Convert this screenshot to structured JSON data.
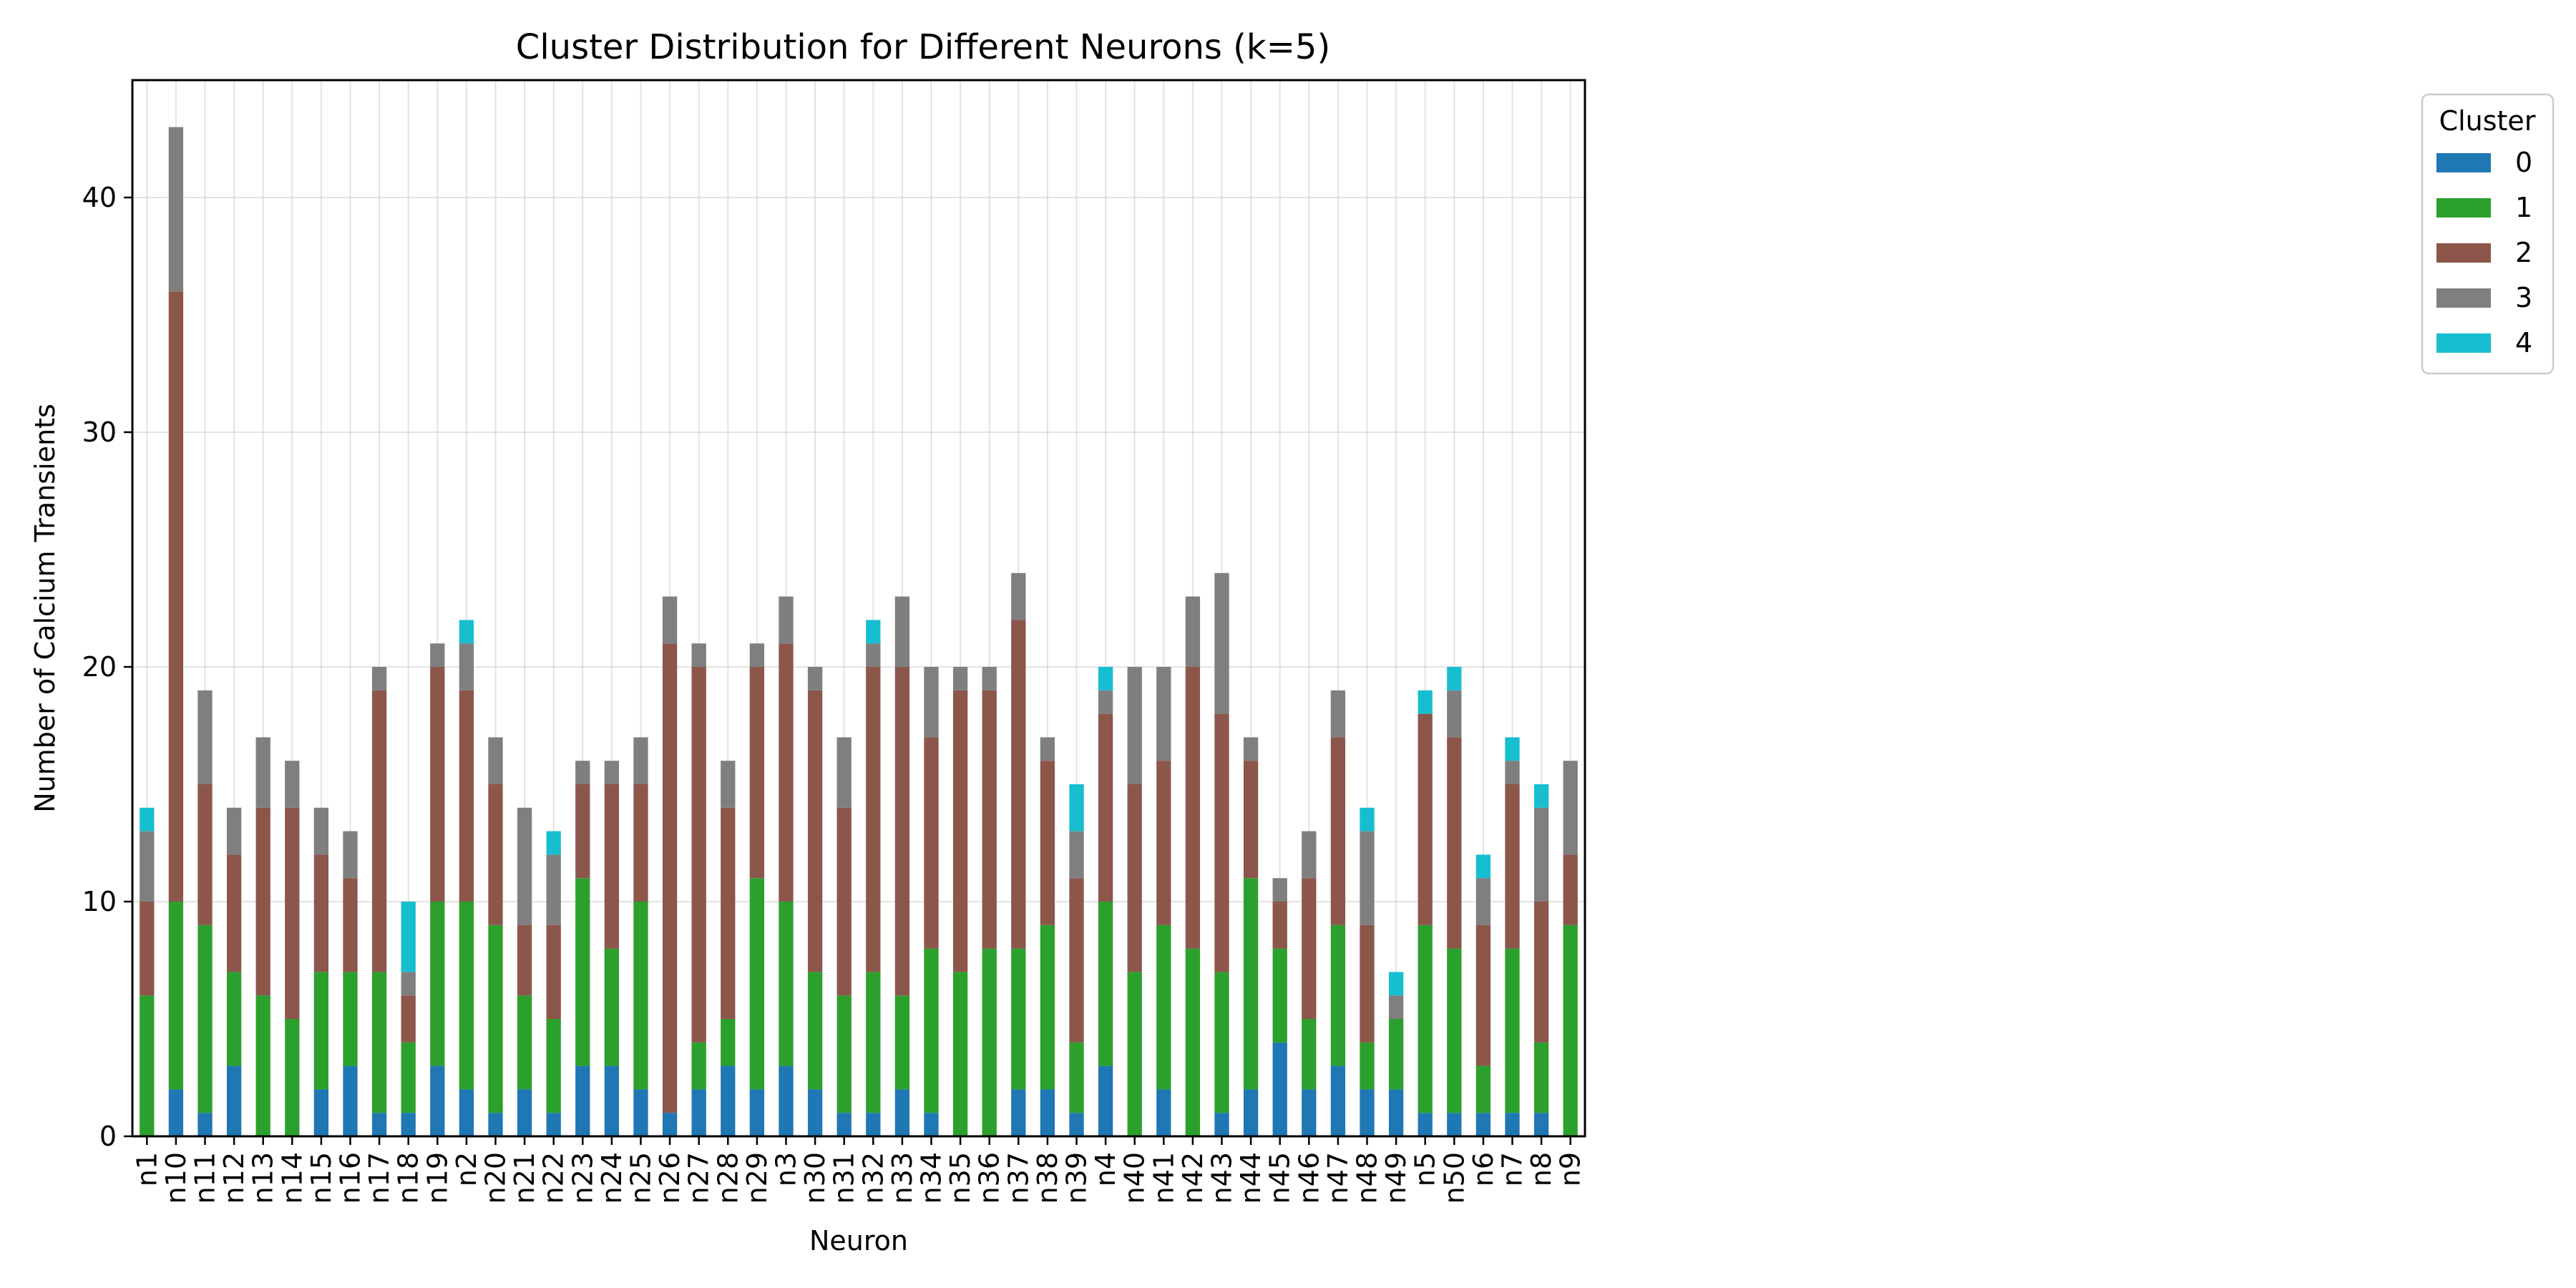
{
  "chart_data": {
    "type": "bar",
    "stacked": true,
    "title": "Cluster Distribution for Different Neurons (k=5)",
    "xlabel": "Neuron",
    "ylabel": "Number of Calcium Transients",
    "ylim": [
      0,
      45
    ],
    "yticks": [
      0,
      10,
      20,
      30,
      40
    ],
    "grid": true,
    "legend": {
      "title": "Cluster",
      "placement": "outside-top-right"
    },
    "categories": [
      "n1",
      "n10",
      "n11",
      "n12",
      "n13",
      "n14",
      "n15",
      "n16",
      "n17",
      "n18",
      "n19",
      "n2",
      "n20",
      "n21",
      "n22",
      "n23",
      "n24",
      "n25",
      "n26",
      "n27",
      "n28",
      "n29",
      "n3",
      "n30",
      "n31",
      "n32",
      "n33",
      "n34",
      "n35",
      "n36",
      "n37",
      "n38",
      "n39",
      "n4",
      "n40",
      "n41",
      "n42",
      "n43",
      "n44",
      "n45",
      "n46",
      "n47",
      "n48",
      "n49",
      "n5",
      "n50",
      "n6",
      "n7",
      "n8",
      "n9"
    ],
    "series": [
      {
        "name": "0",
        "color": "#1f77b4",
        "values": [
          0,
          2,
          1,
          3,
          0,
          0,
          2,
          3,
          1,
          1,
          3,
          2,
          1,
          2,
          1,
          3,
          3,
          2,
          1,
          2,
          3,
          2,
          3,
          2,
          1,
          1,
          2,
          1,
          0,
          0,
          2,
          2,
          1,
          3,
          0,
          2,
          0,
          1,
          2,
          4,
          2,
          3,
          2,
          2,
          1,
          1,
          1,
          1,
          1,
          0
        ]
      },
      {
        "name": "1",
        "color": "#2ca02c",
        "values": [
          6,
          8,
          8,
          4,
          6,
          5,
          5,
          4,
          6,
          3,
          7,
          8,
          8,
          4,
          4,
          8,
          5,
          8,
          0,
          2,
          2,
          9,
          7,
          5,
          5,
          6,
          4,
          7,
          7,
          8,
          6,
          7,
          3,
          7,
          7,
          7,
          8,
          6,
          9,
          4,
          3,
          6,
          2,
          3,
          8,
          7,
          2,
          7,
          3,
          9
        ]
      },
      {
        "name": "2",
        "color": "#8c564b",
        "values": [
          4,
          26,
          6,
          5,
          8,
          9,
          5,
          4,
          12,
          2,
          10,
          9,
          6,
          3,
          4,
          4,
          7,
          5,
          20,
          16,
          9,
          9,
          11,
          12,
          8,
          13,
          14,
          9,
          12,
          11,
          14,
          7,
          7,
          8,
          8,
          7,
          12,
          11,
          5,
          2,
          6,
          8,
          5,
          0,
          9,
          9,
          6,
          7,
          6,
          3
        ]
      },
      {
        "name": "3",
        "color": "#7f7f7f",
        "values": [
          3,
          7,
          4,
          2,
          3,
          2,
          2,
          2,
          1,
          1,
          1,
          2,
          2,
          5,
          3,
          1,
          1,
          2,
          2,
          1,
          2,
          1,
          2,
          1,
          3,
          1,
          3,
          3,
          1,
          1,
          2,
          1,
          2,
          1,
          5,
          4,
          3,
          6,
          1,
          1,
          2,
          2,
          4,
          1,
          0,
          2,
          2,
          1,
          4,
          4
        ]
      },
      {
        "name": "4",
        "color": "#17becf",
        "values": [
          1,
          0,
          0,
          0,
          0,
          0,
          0,
          0,
          0,
          3,
          0,
          1,
          0,
          0,
          1,
          0,
          0,
          0,
          0,
          0,
          0,
          0,
          0,
          0,
          0,
          1,
          0,
          0,
          0,
          0,
          0,
          0,
          2,
          1,
          0,
          0,
          0,
          0,
          0,
          0,
          0,
          0,
          1,
          1,
          1,
          1,
          1,
          1,
          1,
          0
        ]
      }
    ]
  }
}
